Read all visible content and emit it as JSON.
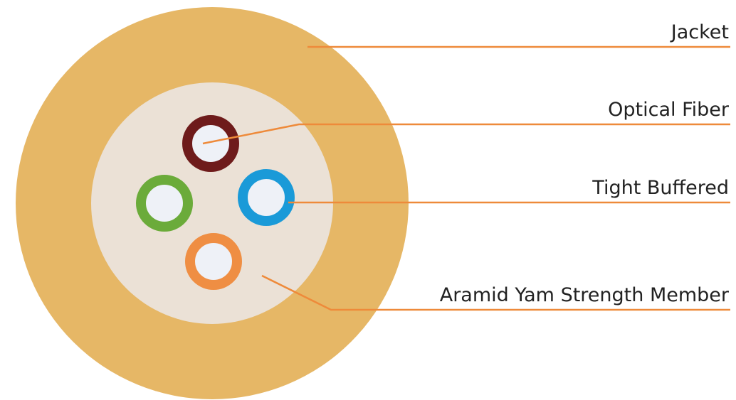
{
  "labels": [
    "Jacket",
    "Optical Fiber",
    "Tight Buffered",
    "Aramid Yam Strength Member"
  ]
}
